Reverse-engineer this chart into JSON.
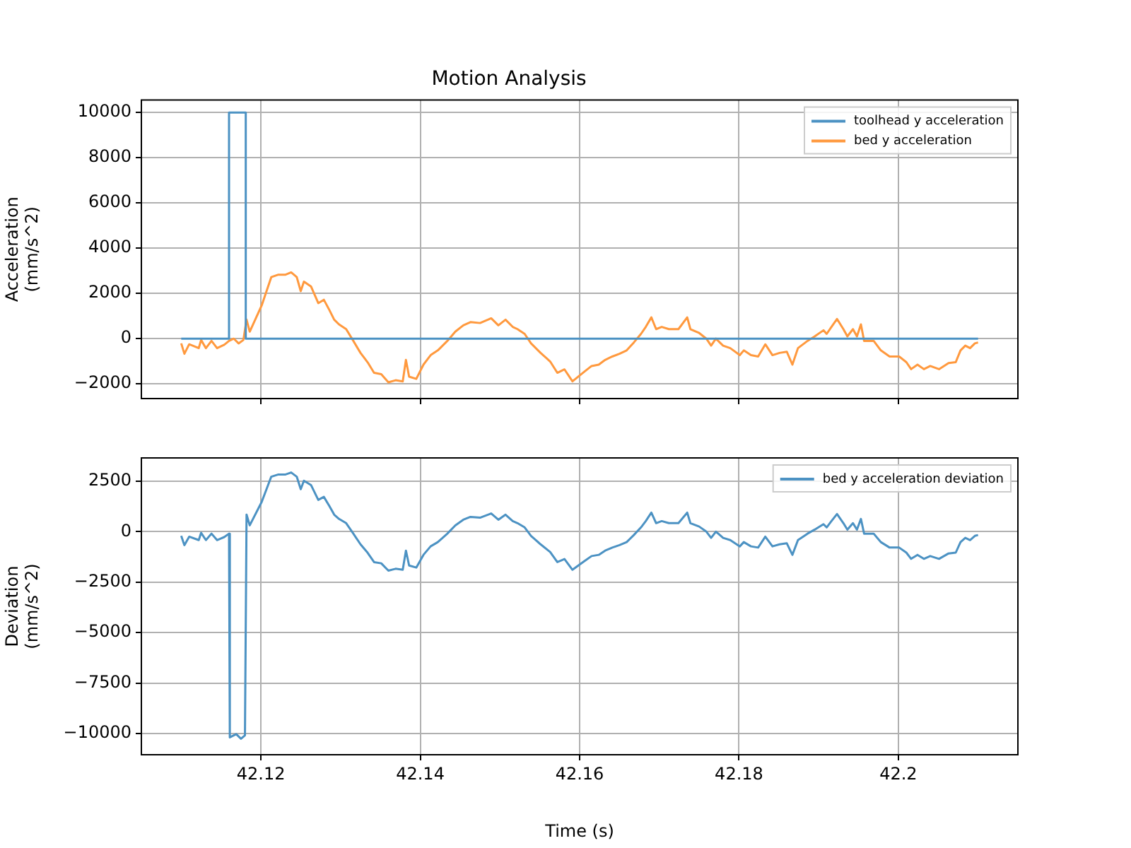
{
  "chart_data": [
    {
      "type": "line",
      "title": "Motion Analysis",
      "ylabel": "Acceleration\n(mm/s^2)",
      "xlim": [
        42.105,
        42.215
      ],
      "xticks": [
        42.12,
        42.14,
        42.16,
        42.18,
        42.2
      ],
      "ylim": [
        -2650,
        10550
      ],
      "yticks": [
        -2000,
        0,
        2000,
        4000,
        6000,
        8000,
        10000
      ],
      "grid": true,
      "legend": "top right",
      "tick_labels": "y",
      "series": [
        {
          "name": "toolhead y acceleration",
          "color": "#4c92c3",
          "x": [
            42.11,
            42.116,
            42.116,
            42.1181,
            42.1181,
            42.21
          ],
          "values": [
            0,
            0,
            10000,
            10000,
            0,
            0
          ]
        },
        {
          "name": "bed y acceleration",
          "color": "#ff993e",
          "x": [
            42.11,
            42.1104,
            42.111,
            42.1122,
            42.1125,
            42.1131,
            42.1138,
            42.1145,
            42.1154,
            42.116,
            42.1166,
            42.1172,
            42.1178,
            42.1182,
            42.1186,
            42.1201,
            42.1213,
            42.1222,
            42.1231,
            42.1238,
            42.1245,
            42.125,
            42.1254,
            42.1263,
            42.1272,
            42.1279,
            42.1286,
            42.1292,
            42.1298,
            42.1307,
            42.1316,
            42.1325,
            42.1334,
            42.1342,
            42.1351,
            42.136,
            42.1369,
            42.1378,
            42.1382,
            42.1386,
            42.1395,
            42.1404,
            42.1413,
            42.1422,
            42.1434,
            42.1444,
            42.1454,
            42.1463,
            42.1475,
            42.1489,
            42.1498,
            42.1507,
            42.1516,
            42.1522,
            42.1531,
            42.1539,
            42.1551,
            42.1563,
            42.1572,
            42.1581,
            42.1591,
            42.1606,
            42.1615,
            42.1624,
            42.1632,
            42.1641,
            42.165,
            42.1659,
            42.1668,
            42.1677,
            42.1683,
            42.169,
            42.1696,
            42.1703,
            42.1712,
            42.1724,
            42.1735,
            42.1739,
            42.175,
            42.1759,
            42.1765,
            42.1771,
            42.178,
            42.1789,
            42.1801,
            42.1806,
            42.1815,
            42.1824,
            42.1833,
            42.1842,
            42.1851,
            42.186,
            42.1867,
            42.1874,
            42.1886,
            42.1895,
            42.1906,
            42.191,
            42.1916,
            42.1923,
            42.1931,
            42.1936,
            42.1943,
            42.1948,
            42.1953,
            42.1957,
            42.1969,
            42.1978,
            42.1989,
            42.2001,
            42.201,
            42.2016,
            42.2024,
            42.2032,
            42.204,
            42.2051,
            42.2063,
            42.2072,
            42.2078,
            42.2084,
            42.209,
            42.2096,
            42.21
          ],
          "values": [
            -210,
            -670,
            -250,
            -420,
            -60,
            -420,
            -100,
            -420,
            -270,
            -100,
            0,
            -210,
            -60,
            840,
            310,
            1470,
            2720,
            2830,
            2830,
            2930,
            2720,
            2100,
            2520,
            2300,
            1570,
            1720,
            1260,
            840,
            630,
            420,
            -100,
            -630,
            -1050,
            -1510,
            -1570,
            -1930,
            -1840,
            -1890,
            -940,
            -1680,
            -1780,
            -1150,
            -730,
            -520,
            -100,
            310,
            590,
            730,
            690,
            900,
            590,
            840,
            520,
            420,
            210,
            -210,
            -630,
            -1010,
            -1510,
            -1360,
            -1890,
            -1460,
            -1210,
            -1150,
            -940,
            -790,
            -670,
            -520,
            -170,
            210,
            520,
            940,
            420,
            520,
            420,
            420,
            940,
            420,
            250,
            0,
            -310,
            0,
            -310,
            -420,
            -730,
            -520,
            -730,
            -790,
            -250,
            -730,
            -630,
            -580,
            -1150,
            -420,
            -100,
            100,
            370,
            210,
            520,
            870,
            420,
            100,
            420,
            100,
            630,
            -100,
            -100,
            -520,
            -790,
            -790,
            -1040,
            -1350,
            -1150,
            -1350,
            -1210,
            -1350,
            -1080,
            -1040,
            -520,
            -310,
            -420,
            -210,
            -170
          ]
        }
      ]
    },
    {
      "type": "line",
      "xlabel": "Time (s)",
      "ylabel": "Deviation\n(mm/s^2)",
      "xlim": [
        42.105,
        42.215
      ],
      "xticks": [
        42.12,
        42.14,
        42.16,
        42.18,
        42.2
      ],
      "ylim": [
        -11050,
        3650
      ],
      "yticks": [
        -10000,
        -7500,
        -5000,
        -2500,
        0,
        2500
      ],
      "grid": true,
      "legend": "top right",
      "series": [
        {
          "name": "bed y acceleration deviation",
          "color": "#4c92c3",
          "x": [
            42.11,
            42.1104,
            42.111,
            42.1122,
            42.1125,
            42.1131,
            42.1138,
            42.1145,
            42.1154,
            42.116,
            42.1161,
            42.1169,
            42.1175,
            42.118,
            42.1182,
            42.1186,
            42.1201,
            42.1213,
            42.1222,
            42.1231,
            42.1238,
            42.1245,
            42.125,
            42.1254,
            42.1263,
            42.1272,
            42.1279,
            42.1286,
            42.1292,
            42.1298,
            42.1307,
            42.1316,
            42.1325,
            42.1334,
            42.1342,
            42.1351,
            42.136,
            42.1369,
            42.1378,
            42.1382,
            42.1386,
            42.1395,
            42.1404,
            42.1413,
            42.1422,
            42.1434,
            42.1444,
            42.1454,
            42.1463,
            42.1475,
            42.1489,
            42.1498,
            42.1507,
            42.1516,
            42.1522,
            42.1531,
            42.1539,
            42.1551,
            42.1563,
            42.1572,
            42.1581,
            42.1591,
            42.1606,
            42.1615,
            42.1624,
            42.1632,
            42.1641,
            42.165,
            42.1659,
            42.1668,
            42.1677,
            42.1683,
            42.169,
            42.1696,
            42.1703,
            42.1712,
            42.1724,
            42.1735,
            42.1739,
            42.175,
            42.1759,
            42.1765,
            42.1771,
            42.178,
            42.1789,
            42.1801,
            42.1806,
            42.1815,
            42.1824,
            42.1833,
            42.1842,
            42.1851,
            42.186,
            42.1867,
            42.1874,
            42.1886,
            42.1895,
            42.1906,
            42.191,
            42.1916,
            42.1923,
            42.1931,
            42.1936,
            42.1943,
            42.1948,
            42.1953,
            42.1957,
            42.1969,
            42.1978,
            42.1989,
            42.2001,
            42.201,
            42.2016,
            42.2024,
            42.2032,
            42.204,
            42.2051,
            42.2063,
            42.2072,
            42.2078,
            42.2084,
            42.209,
            42.2096,
            42.21
          ],
          "values": [
            -210,
            -670,
            -250,
            -420,
            -60,
            -420,
            -100,
            -420,
            -270,
            -100,
            -10190,
            -10030,
            -10260,
            -10090,
            840,
            310,
            1470,
            2720,
            2830,
            2830,
            2930,
            2720,
            2100,
            2520,
            2300,
            1570,
            1720,
            1260,
            840,
            630,
            420,
            -100,
            -630,
            -1050,
            -1510,
            -1570,
            -1930,
            -1840,
            -1890,
            -940,
            -1680,
            -1780,
            -1150,
            -730,
            -520,
            -100,
            310,
            590,
            730,
            690,
            900,
            590,
            840,
            520,
            420,
            210,
            -210,
            -630,
            -1010,
            -1510,
            -1360,
            -1890,
            -1460,
            -1210,
            -1150,
            -940,
            -790,
            -670,
            -520,
            -170,
            210,
            520,
            940,
            420,
            520,
            420,
            420,
            940,
            420,
            250,
            0,
            -310,
            0,
            -310,
            -420,
            -730,
            -520,
            -730,
            -790,
            -250,
            -730,
            -630,
            -580,
            -1150,
            -420,
            -100,
            100,
            370,
            210,
            520,
            870,
            420,
            100,
            420,
            100,
            630,
            -100,
            -100,
            -520,
            -790,
            -790,
            -1040,
            -1350,
            -1150,
            -1350,
            -1210,
            -1350,
            -1080,
            -1040,
            -520,
            -310,
            -420,
            -210,
            -170
          ]
        }
      ]
    }
  ]
}
